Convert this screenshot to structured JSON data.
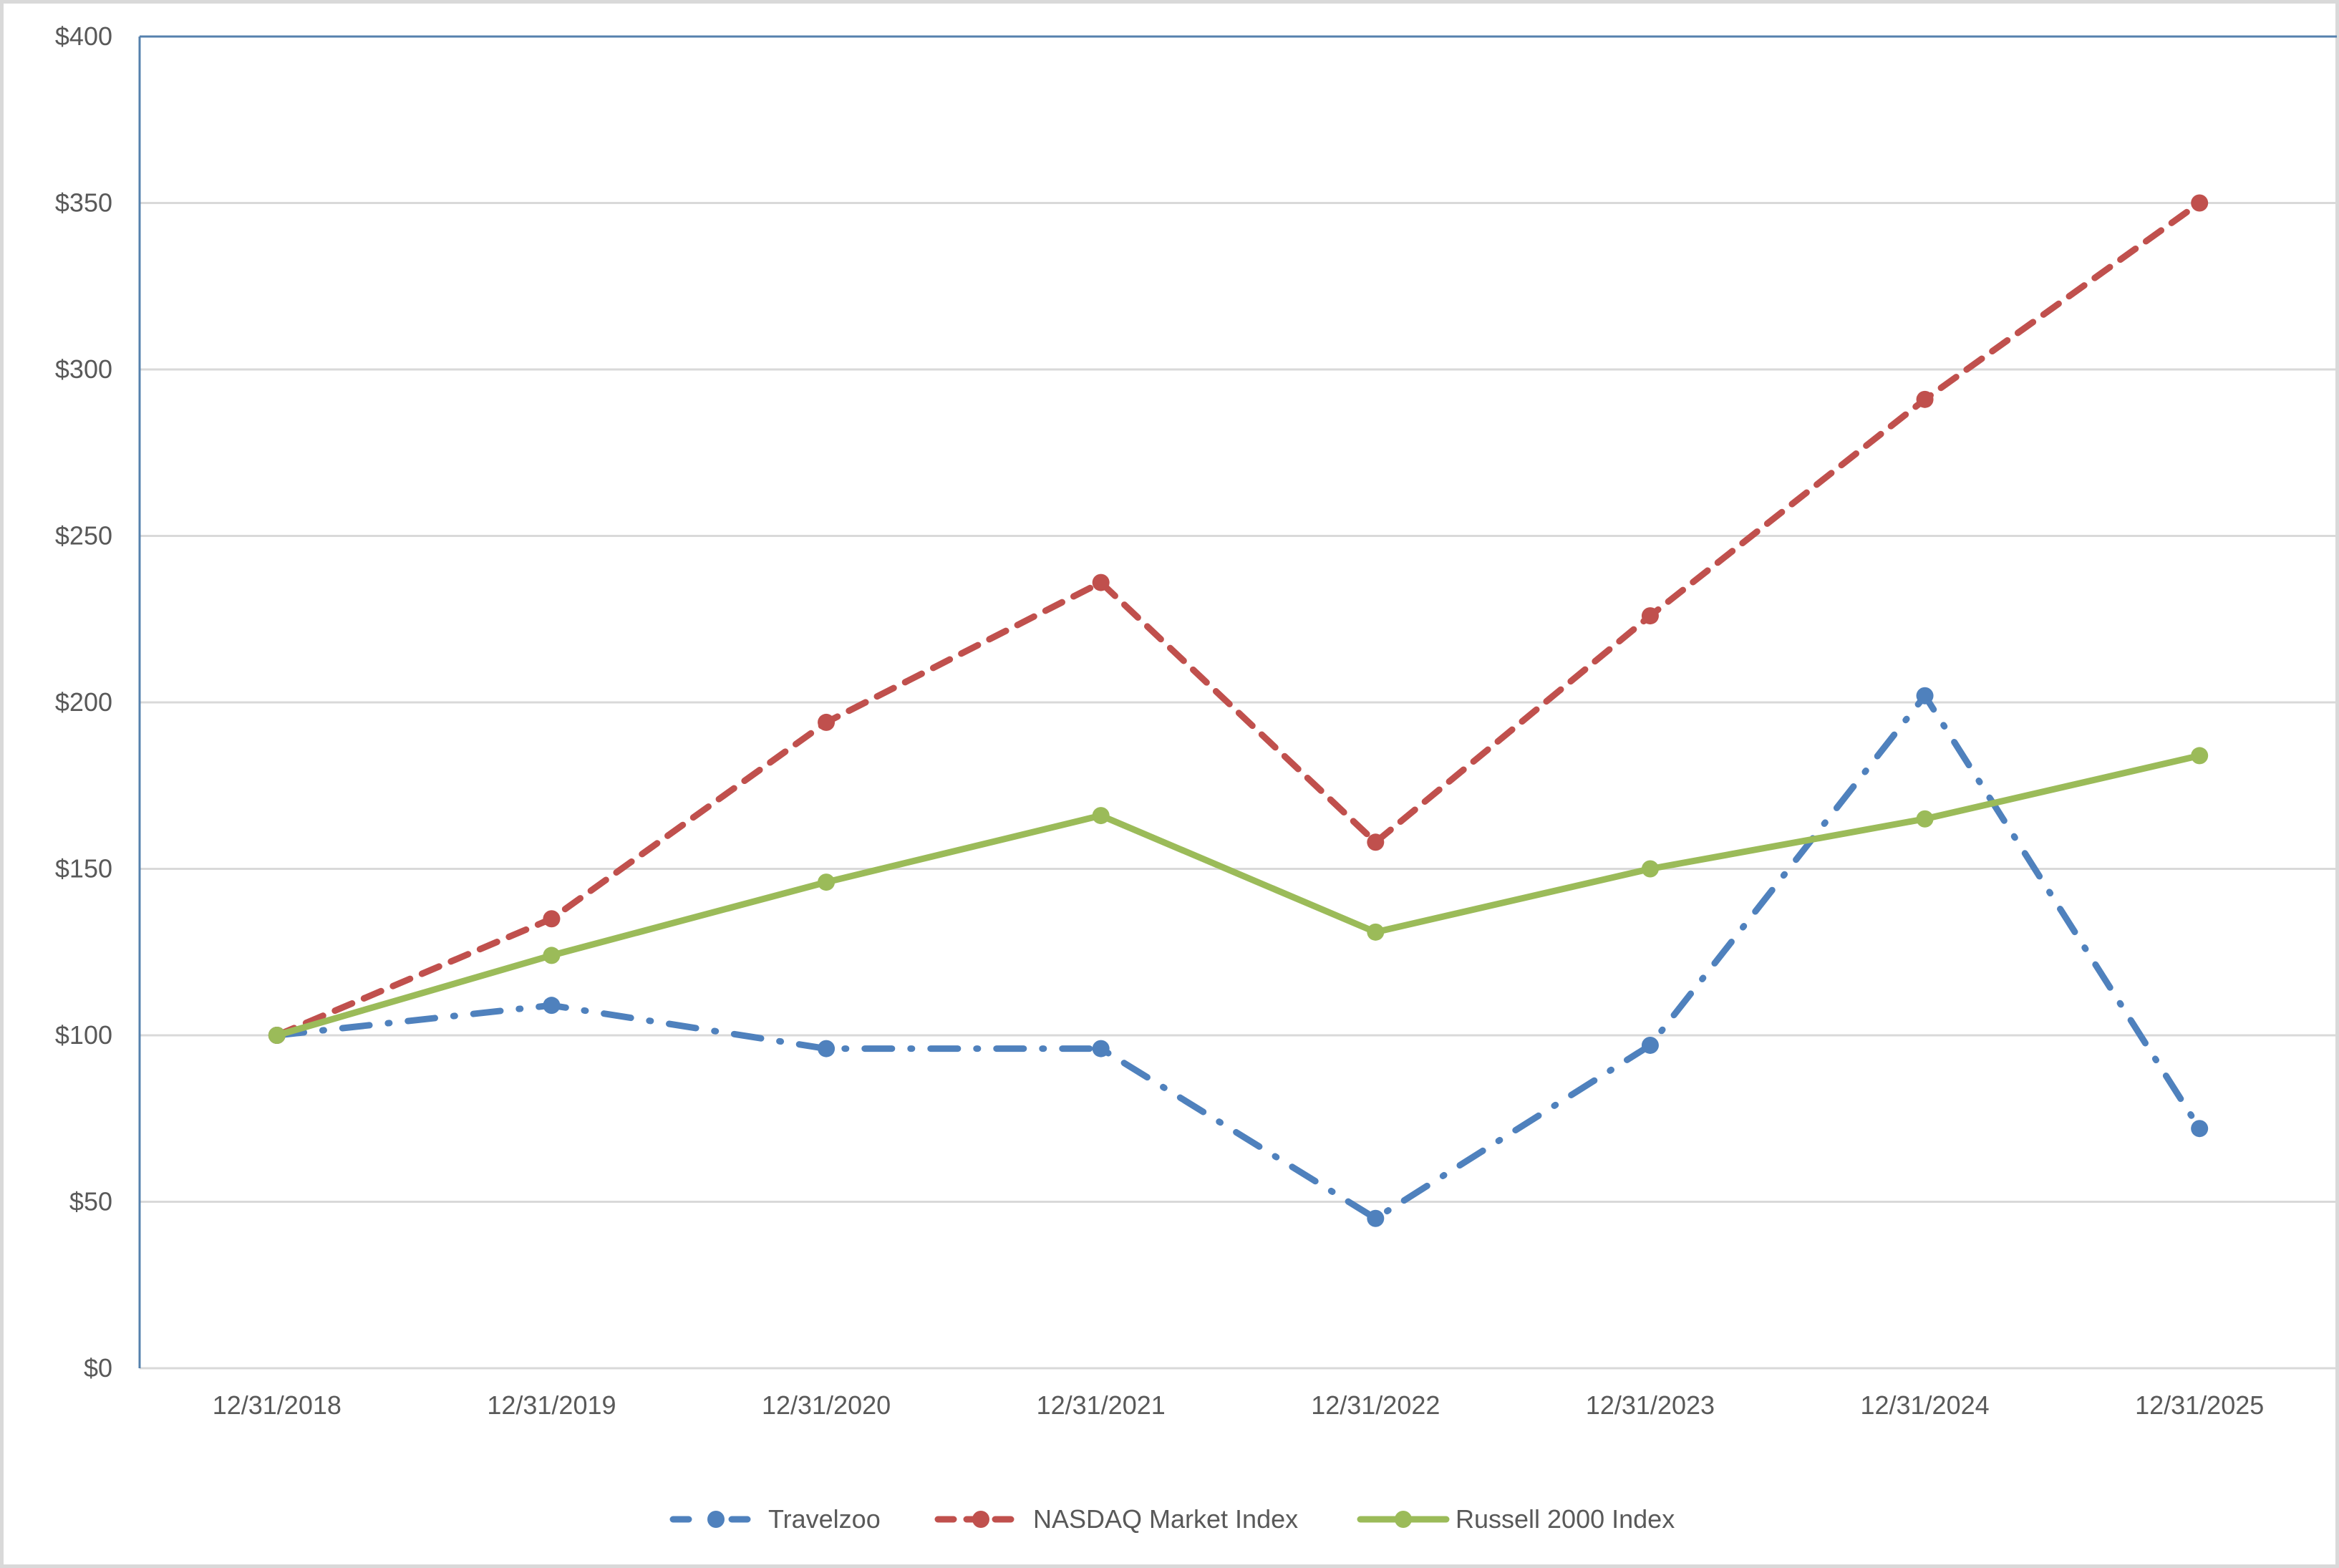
{
  "chart_data": {
    "type": "line",
    "title": "",
    "xlabel": "",
    "ylabel": "",
    "categories": [
      "12/31/2018",
      "12/31/2019",
      "12/31/2020",
      "12/31/2021",
      "12/31/2022",
      "12/31/2023",
      "12/31/2024",
      "12/31/2025"
    ],
    "series": [
      {
        "name": "Travelzoo",
        "color": "#4F81BD",
        "line_style": "dash-dot",
        "values": [
          100,
          109,
          96,
          96,
          45,
          97,
          202,
          72
        ]
      },
      {
        "name": "NASDAQ Market Index",
        "color": "#C0504D",
        "line_style": "dashed",
        "values": [
          100,
          135,
          194,
          236,
          158,
          226,
          291,
          350
        ]
      },
      {
        "name": "Russell 2000 Index",
        "color": "#9BBB59",
        "line_style": "solid",
        "values": [
          100,
          124,
          146,
          166,
          131,
          150,
          165,
          184
        ]
      }
    ],
    "ylim": [
      0,
      400
    ],
    "yticks": [
      0,
      50,
      100,
      150,
      200,
      250,
      300,
      350,
      400
    ],
    "ytick_labels": [
      "$0",
      "$50",
      "$100",
      "$150",
      "$200",
      "$250",
      "$300",
      "$350",
      "$400"
    ],
    "grid": true,
    "legend_position": "bottom",
    "markers": "circle"
  }
}
